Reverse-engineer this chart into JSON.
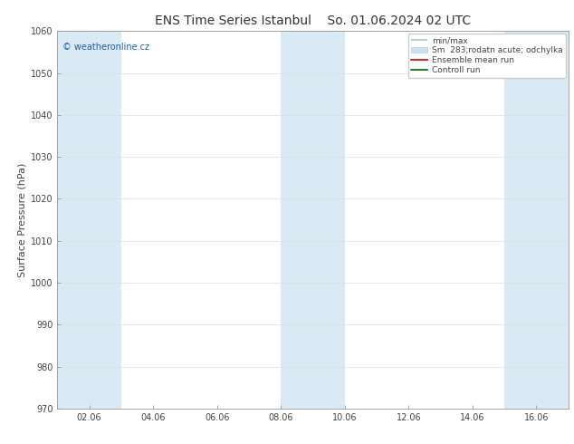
{
  "title": "ENS Time Series Istanbul",
  "title2": "So. 01.06.2024 02 UTC",
  "ylabel": "Surface Pressure (hPa)",
  "ylim": [
    970,
    1060
  ],
  "yticks": [
    970,
    980,
    990,
    1000,
    1010,
    1020,
    1030,
    1040,
    1050,
    1060
  ],
  "xtick_labels": [
    "02.06",
    "04.06",
    "06.06",
    "08.06",
    "10.06",
    "12.06",
    "14.06",
    "16.06"
  ],
  "xtick_positions": [
    1,
    3,
    5,
    7,
    9,
    11,
    13,
    15
  ],
  "xlim": [
    0,
    16
  ],
  "bg_color": "#ffffff",
  "plot_bg_color": "#ffffff",
  "band_color": "#daeaf5",
  "band_ranges": [
    [
      0,
      2
    ],
    [
      7,
      9
    ],
    [
      14,
      16
    ]
  ],
  "watermark": "© weatheronline.cz",
  "legend_items": [
    {
      "label": "min/max",
      "color": "#b8cfe0",
      "lw": 1.5,
      "type": "line"
    },
    {
      "label": "Sm  283;rodatn acute; odchylka",
      "color": "#d0e0ee",
      "lw": 6,
      "type": "patch"
    },
    {
      "label": "Ensemble mean run",
      "color": "#cc0000",
      "lw": 1.2,
      "type": "line"
    },
    {
      "label": "Controll run",
      "color": "#006600",
      "lw": 1.2,
      "type": "line"
    }
  ],
  "title_fontsize": 10,
  "axis_label_fontsize": 8,
  "tick_fontsize": 7,
  "watermark_fontsize": 7,
  "legend_fontsize": 6.5
}
